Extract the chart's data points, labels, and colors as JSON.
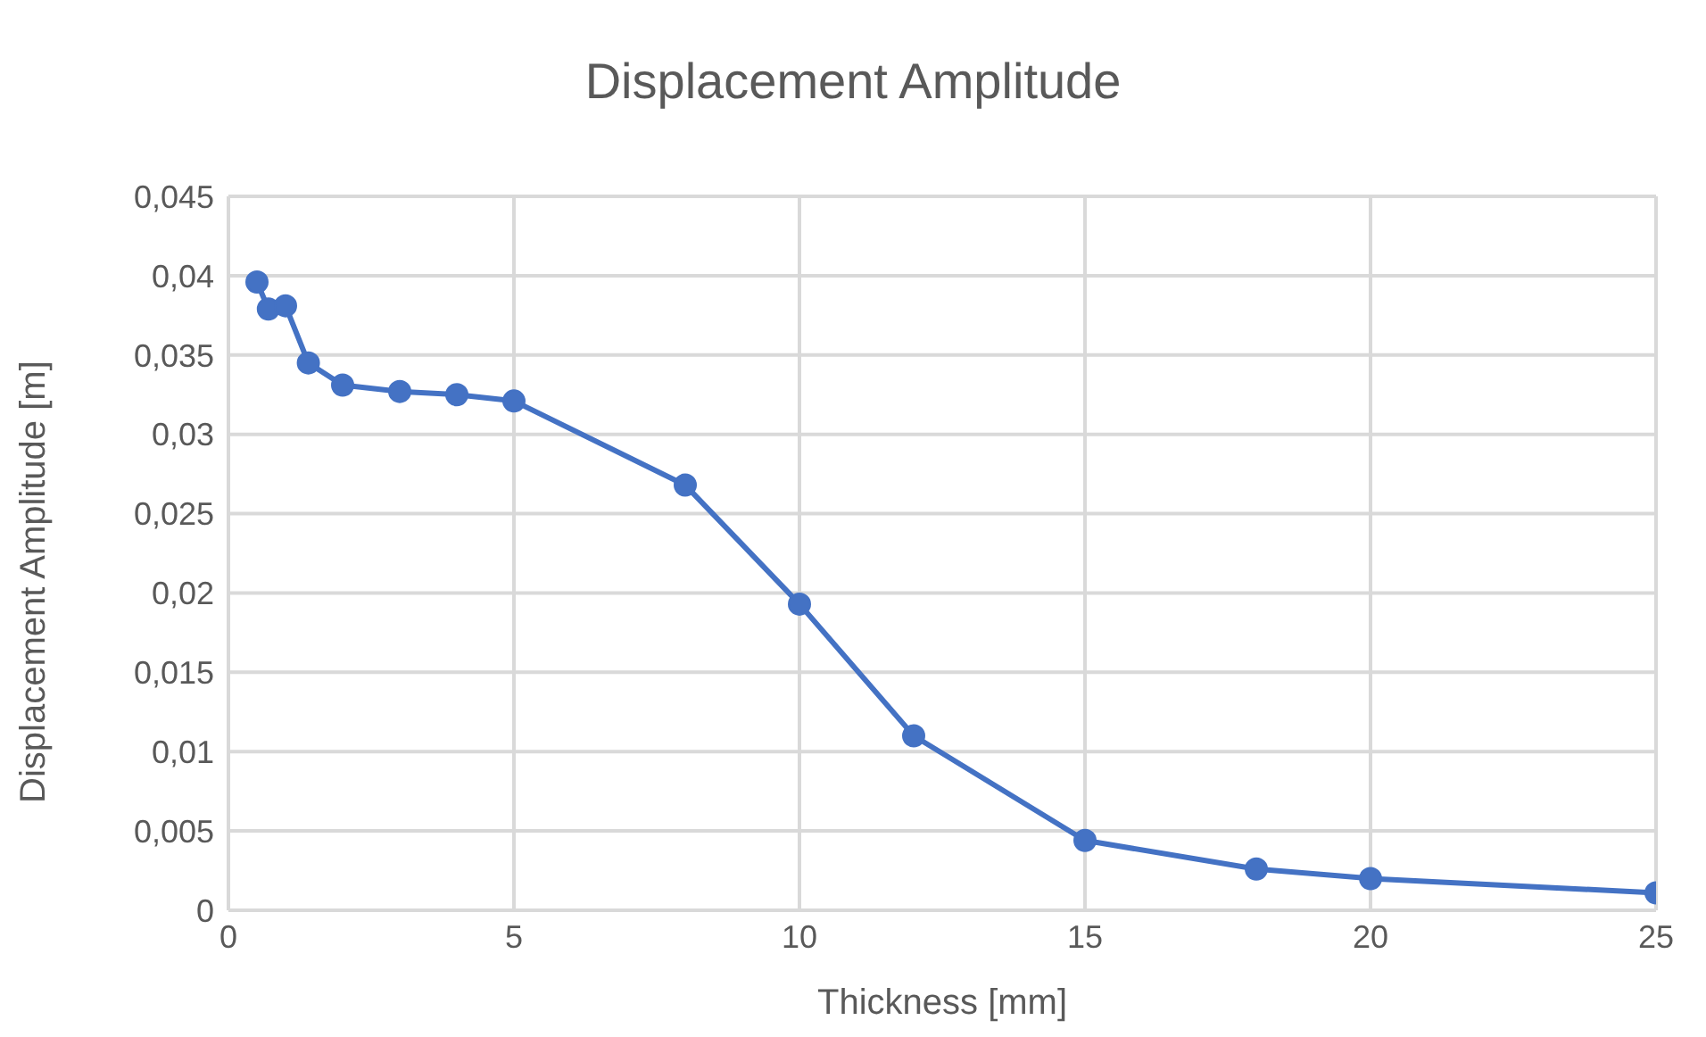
{
  "chart_data": {
    "type": "line",
    "title": "Displacement Amplitude",
    "xlabel": "Thickness [mm]",
    "ylabel": "Displacement Amplitude [m]",
    "x": [
      0.5,
      0.7,
      1,
      1.4,
      2,
      3,
      4,
      5,
      8,
      10,
      12,
      15,
      18,
      20,
      25
    ],
    "series": [
      {
        "color": "#4472c4",
        "values": [
          0.0396,
          0.0379,
          0.0381,
          0.0345,
          0.0331,
          0.0327,
          0.0325,
          0.0321,
          0.0268,
          0.0193,
          0.011,
          0.0044,
          0.0026,
          0.002,
          0.0011
        ]
      }
    ],
    "xlim": [
      0,
      25
    ],
    "xticks": [
      0,
      5,
      10,
      15,
      20,
      25
    ],
    "ylim": [
      0,
      0.045
    ],
    "yticks": [
      0,
      {
        "value": 0.005,
        "label": "0,005"
      },
      {
        "value": 0.01,
        "label": "0,01"
      },
      {
        "value": 0.015,
        "label": "0,015"
      },
      {
        "value": 0.02,
        "label": "0,02"
      },
      {
        "value": 0.025,
        "label": "0,025"
      },
      {
        "value": 0.03,
        "label": "0,03"
      },
      {
        "value": 0.035,
        "label": "0,035"
      },
      {
        "value": 0.04,
        "label": "0,04"
      },
      {
        "value": 0.045,
        "label": "0,045"
      }
    ],
    "grid": true,
    "marker": "circle",
    "line_style": "solid"
  }
}
